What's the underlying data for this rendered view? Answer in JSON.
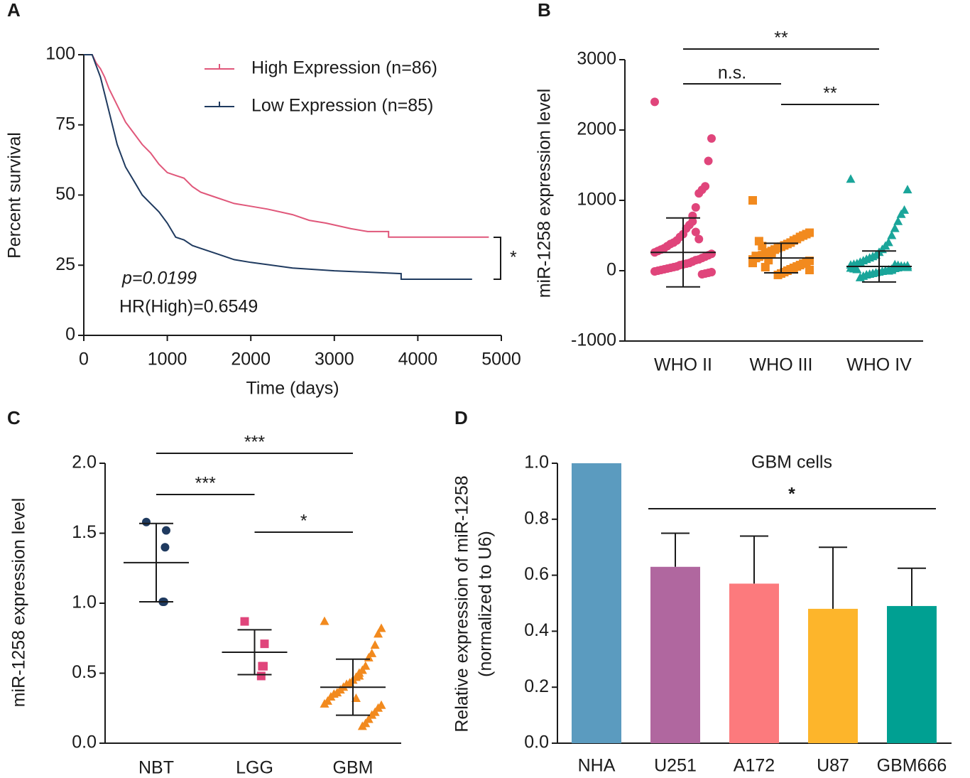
{
  "chart_data": [
    {
      "type": "survival",
      "panel": "A",
      "xlabel": "Time (days)",
      "ylabel": "Percent survival",
      "xlim": [
        0,
        5000
      ],
      "xticks": [
        0,
        1000,
        2000,
        3000,
        4000,
        5000
      ],
      "ylim": [
        0,
        100
      ],
      "yticks": [
        0,
        25,
        50,
        75,
        100
      ],
      "series": [
        {
          "name": "High Expression (n=86)",
          "color": "#e0577a",
          "x": [
            0,
            100,
            150,
            200,
            250,
            300,
            350,
            400,
            450,
            500,
            600,
            700,
            800,
            900,
            1000,
            1100,
            1200,
            1300,
            1400,
            1500,
            1600,
            1700,
            1800,
            2000,
            2200,
            2500,
            2700,
            2900,
            3200,
            3400,
            3650,
            3650,
            4850
          ],
          "values": [
            100,
            100,
            97,
            95,
            92,
            88,
            85,
            82,
            79,
            76,
            72,
            68,
            65,
            61,
            58,
            57,
            56,
            53,
            51,
            50,
            49,
            48,
            47,
            46,
            45,
            43,
            41,
            40,
            38,
            37,
            37,
            35,
            35
          ]
        },
        {
          "name": "Low Expression (n=85)",
          "color": "#1f3a5f",
          "x": [
            0,
            100,
            150,
            200,
            250,
            300,
            350,
            400,
            450,
            500,
            600,
            700,
            800,
            900,
            1000,
            1100,
            1200,
            1300,
            1400,
            1600,
            1800,
            2000,
            2500,
            3000,
            3800,
            3800,
            4650
          ],
          "values": [
            100,
            100,
            96,
            92,
            86,
            80,
            74,
            68,
            64,
            60,
            55,
            50,
            47,
            44,
            40,
            35,
            34,
            32,
            31,
            29,
            27,
            26,
            24,
            23,
            22,
            20,
            20
          ]
        }
      ],
      "annotations": [
        "p=0.0199",
        "HR(High)=0.6549",
        "*"
      ]
    },
    {
      "type": "dot",
      "panel": "B",
      "ylabel": "miR-1258 expression level",
      "categories": [
        "WHO II",
        "WHO III",
        "WHO IV"
      ],
      "colors": [
        "#e0457b",
        "#f28a1e",
        "#1aa59a"
      ],
      "ylim": [
        -1000,
        3000
      ],
      "yticks": [
        -1000,
        0,
        1000,
        2000,
        3000
      ],
      "points": [
        [
          2400,
          1880,
          1560,
          1200,
          1150,
          1100,
          900,
          780,
          650,
          600,
          520,
          480,
          430,
          400,
          380,
          350,
          320,
          300,
          280,
          260,
          240,
          220,
          200,
          180,
          160,
          150,
          130,
          110,
          100,
          90,
          80,
          60,
          50,
          40,
          30,
          20,
          10,
          0,
          -10,
          -20,
          -30,
          -40,
          -50,
          450,
          550,
          700
        ],
        [
          1000,
          540,
          520,
          500,
          480,
          450,
          430,
          400,
          380,
          360,
          340,
          320,
          300,
          280,
          260,
          240,
          220,
          200,
          180,
          160,
          140,
          120,
          100,
          80,
          60,
          40,
          20,
          0,
          -20,
          -40,
          -60,
          300,
          250,
          150,
          50,
          350,
          420,
          210,
          110,
          10
        ],
        [
          1300,
          1150,
          860,
          800,
          700,
          600,
          500,
          400,
          350,
          300,
          260,
          220,
          200,
          180,
          160,
          140,
          120,
          100,
          90,
          80,
          70,
          60,
          50,
          40,
          30,
          20,
          10,
          0,
          -10,
          -20,
          -30,
          -40,
          -50,
          -60,
          -80,
          -100,
          15,
          25,
          35,
          45,
          55,
          65,
          75,
          85,
          5,
          -5
        ]
      ],
      "means": [
        260,
        180,
        60
      ],
      "sd": [
        490,
        210,
        220
      ],
      "significance": [
        "**",
        "n.s.",
        "**"
      ]
    },
    {
      "type": "dot",
      "panel": "C",
      "ylabel": "miR-1258 expression level",
      "categories": [
        "NBT",
        "LGG",
        "GBM"
      ],
      "colors": [
        "#1f3a5f",
        "#e0457b",
        "#f28a1e"
      ],
      "ylim": [
        0,
        2
      ],
      "yticks": [
        {
          "value": 0,
          "label": "0.0"
        },
        0.5,
        {
          "value": 1,
          "label": "1.0"
        },
        1.5,
        {
          "value": 2,
          "label": "2.0"
        }
      ],
      "points": [
        [
          1.58,
          1.52,
          1.4,
          1.01,
          1.01
        ],
        [
          0.87,
          0.71,
          0.55,
          0.55,
          0.48
        ],
        [
          0.87,
          0.82,
          0.78,
          0.7,
          0.64,
          0.61,
          0.55,
          0.52,
          0.5,
          0.47,
          0.45,
          0.43,
          0.42,
          0.4,
          0.38,
          0.36,
          0.35,
          0.33,
          0.3,
          0.28,
          0.27,
          0.25,
          0.22,
          0.2,
          0.17,
          0.14,
          0.12,
          0.48,
          0.32
        ]
      ],
      "means": [
        1.29,
        0.65,
        0.4
      ],
      "sd": [
        0.28,
        0.16,
        0.2
      ],
      "significance": [
        "***",
        "***",
        "*"
      ]
    },
    {
      "type": "bar",
      "panel": "D",
      "ylabel": [
        "Relative expression of miR-1258",
        "(normalized to U6)"
      ],
      "categories": [
        "NHA",
        "U251",
        "A172",
        "U87",
        "GBM666"
      ],
      "colors": [
        "#5b9bbf",
        "#b0679f",
        "#fc7a7d",
        "#fdb52b",
        "#00a092"
      ],
      "values": [
        1.0,
        0.63,
        0.57,
        0.48,
        0.49
      ],
      "errors": [
        0,
        0.12,
        0.17,
        0.22,
        0.135
      ],
      "ylim": [
        0,
        1
      ],
      "yticks": [
        {
          "value": 0,
          "label": "0.0"
        },
        0.2,
        0.4,
        0.6,
        0.8,
        {
          "value": 1,
          "label": "1.0"
        }
      ],
      "annotations": [
        "GBM cells",
        "*"
      ]
    }
  ]
}
